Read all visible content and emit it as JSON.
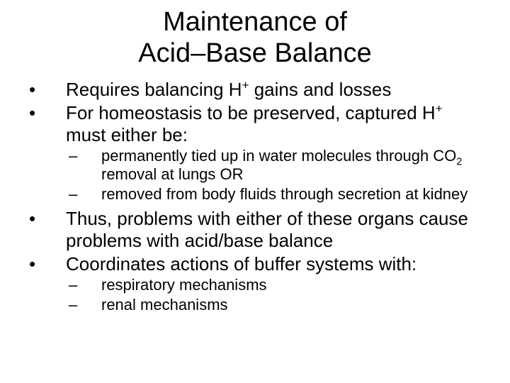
{
  "title_line1": "Maintenance of",
  "title_line2": "Acid–Base Balance",
  "b1_pre": "Requires balancing H",
  "b1_sup": "+",
  "b1_post": " gains and losses",
  "b2_pre": "For homeostasis to be preserved, captured H",
  "b2_sup": "+",
  "b2_post": " must either be:",
  "s1_pre": "permanently tied up in water molecules through CO",
  "s1_sub": "2",
  "s1_post": " removal at lungs OR",
  "s2": "removed from body fluids through secretion at kidney",
  "b3": "Thus, problems with either of these organs cause problems with acid/base balance",
  "b4": "Coordinates actions of buffer systems with:",
  "s3": "respiratory mechanisms",
  "s4": "renal mechanisms",
  "bullet_marker": "•",
  "dash_marker": "–"
}
